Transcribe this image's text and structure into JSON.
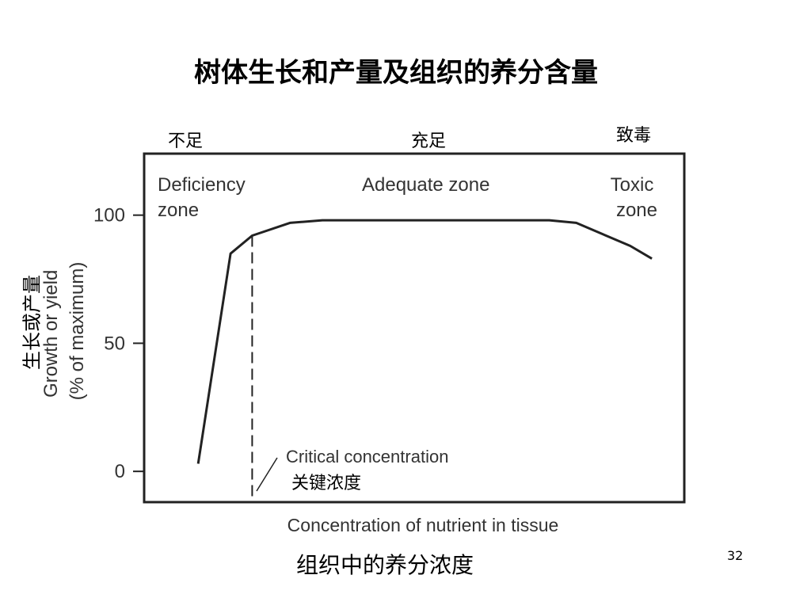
{
  "slide": {
    "title": "树体生长和产量及组织的养分含量",
    "page_number": "32",
    "zone_labels_cn": {
      "deficient": "不足",
      "adequate": "充足",
      "toxic": "致毒"
    },
    "ylabel_cn": "生长或产量",
    "xlabel_cn": "组织中的养分浓度",
    "critical_cn": "关键浓度"
  },
  "chart_data": {
    "type": "line",
    "xlabel": "Concentration of nutrient in tissue",
    "ylabel_lines": [
      "Growth or yield",
      "(% of maximum)"
    ],
    "yticks": [
      0,
      50,
      100
    ],
    "ylim": [
      -12,
      124
    ],
    "xlim": [
      0,
      100
    ],
    "grid": false,
    "series": [
      {
        "x": [
          10,
          16,
          20,
          27,
          33,
          75,
          80,
          90,
          94
        ],
        "y": [
          3,
          85,
          92,
          97,
          98,
          98,
          97,
          88,
          83
        ]
      }
    ],
    "critical_concentration_x": 20,
    "zones": {
      "deficiency": [
        "Deficiency",
        "zone"
      ],
      "adequate": [
        "Adequate zone"
      ],
      "toxic": [
        "Toxic",
        "zone"
      ]
    },
    "annotation": "Critical concentration",
    "colors": {
      "curve": "#222222",
      "frame": "#222222",
      "text": "#333333"
    }
  }
}
